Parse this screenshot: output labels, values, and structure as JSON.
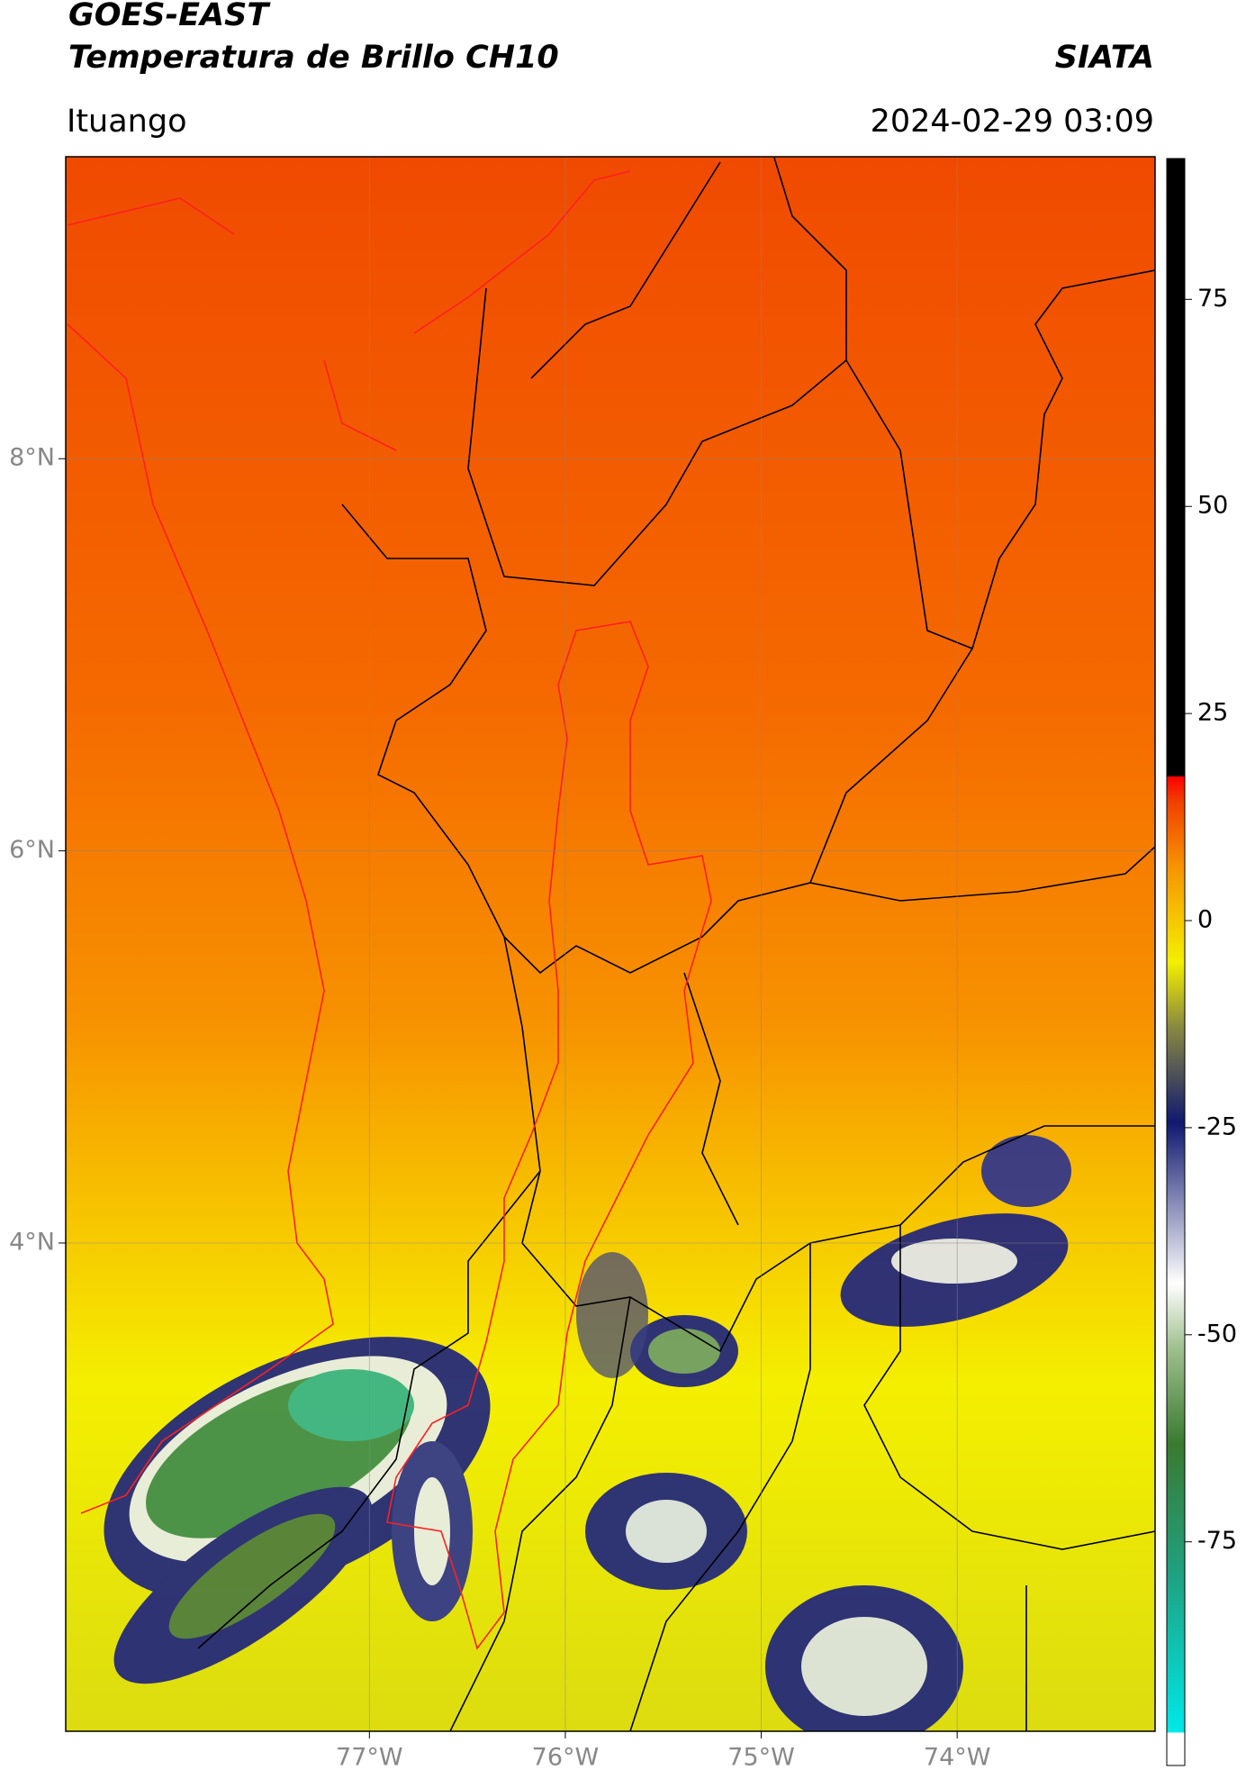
{
  "header": {
    "title": "GOES-EAST",
    "subtitle": "Temperatura de Brillo CH10",
    "brand": "SIATA",
    "location": "Ituango",
    "datetime": "2024-02-29 03:09"
  },
  "map": {
    "xlim": [
      -78.55,
      -72.99
    ],
    "ylim": [
      1.51,
      9.54
    ],
    "xticks": [
      {
        "value": -77,
        "label": "77°W"
      },
      {
        "value": -76,
        "label": "76°W"
      },
      {
        "value": -75,
        "label": "75°W"
      },
      {
        "value": -74,
        "label": "74°W"
      }
    ],
    "yticks": [
      {
        "value": 8,
        "label": "8°N"
      },
      {
        "value": 6,
        "label": "6°N"
      },
      {
        "value": 4,
        "label": "4°N"
      }
    ]
  },
  "colorbar": {
    "lim": [
      -102,
      92
    ],
    "ticks": [
      75,
      50,
      25,
      0,
      -25,
      -50,
      -75
    ]
  }
}
